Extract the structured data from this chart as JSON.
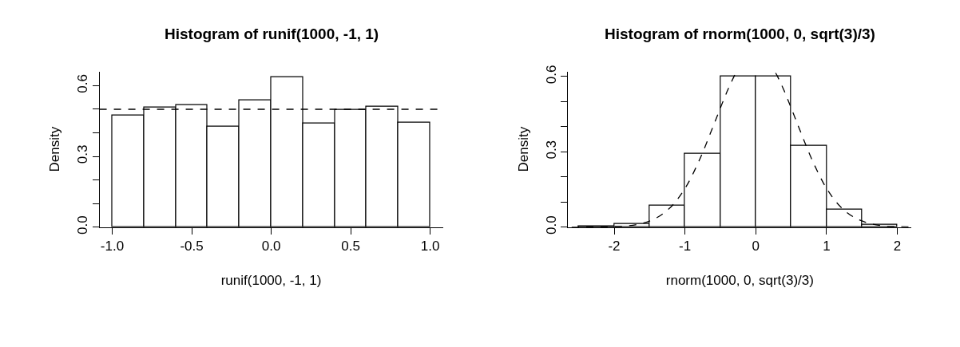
{
  "chart_data": [
    {
      "type": "histogram",
      "title": "Histogram of runif(1000, -1, 1)",
      "xlabel": "runif(1000, -1, 1)",
      "ylabel": "Density",
      "bins": [
        -1.0,
        -0.8,
        -0.6,
        -0.4,
        -0.2,
        0.0,
        0.2,
        0.4,
        0.6,
        0.8,
        1.0
      ],
      "values": [
        0.474,
        0.508,
        0.517,
        0.425,
        0.537,
        0.635,
        0.44,
        0.498,
        0.512,
        0.445
      ],
      "color": "#ffffff",
      "xlim": [
        -1.08,
        1.08
      ],
      "ylim": [
        0,
        0.66
      ],
      "xticks": [
        {
          "value": -1.0,
          "label": "-1.0"
        },
        {
          "value": -0.5,
          "label": "-0.5"
        },
        {
          "value": 0.0,
          "label": "0.0"
        },
        {
          "value": 0.5,
          "label": "0.5"
        },
        {
          "value": 1.0,
          "label": "1.0"
        }
      ],
      "yticks": [
        {
          "value": 0.0,
          "label": "0.0"
        },
        {
          "value": 0.1,
          "label": null
        },
        {
          "value": 0.2,
          "label": null
        },
        {
          "value": 0.3,
          "label": "0.3"
        },
        {
          "value": 0.4,
          "label": null
        },
        {
          "value": 0.5,
          "label": null
        },
        {
          "value": 0.6,
          "label": "0.6"
        }
      ],
      "ref_lines": [
        {
          "axis": "y",
          "value": 0.5,
          "color": "#000000",
          "line_style": "dashed"
        }
      ],
      "grid": false
    },
    {
      "type": "histogram",
      "title": "Histogram of rnorm(1000, 0, sqrt(3)/3)",
      "xlabel": "rnorm(1000, 0, sqrt(3)/3)",
      "ylabel": "Density",
      "bins": [
        -2.5,
        -2.0,
        -1.5,
        -1.0,
        -0.5,
        0.0,
        0.5,
        1.0,
        1.5,
        2.0
      ],
      "values": [
        0.002,
        0.012,
        0.087,
        0.291,
        0.6,
        0.6,
        0.324,
        0.07,
        0.009
      ],
      "color": "#ffffff",
      "series": [
        {
          "type": "line",
          "color": "#000000",
          "line_style": "dashed",
          "x": [
            -2.6,
            -2.2,
            -2.0,
            -1.8,
            -1.6,
            -1.4,
            -1.2,
            -1.0,
            -0.8,
            -0.6,
            -0.4,
            -0.3,
            -0.28,
            0.0,
            0.28,
            0.3,
            0.4,
            0.6,
            0.8,
            1.0,
            1.2,
            1.4,
            1.6,
            1.8,
            2.0,
            2.2
          ],
          "values": [
            0.0,
            0.001,
            0.002,
            0.005,
            0.015,
            0.037,
            0.08,
            0.154,
            0.265,
            0.403,
            0.544,
            0.604,
            0.614,
            null,
            0.614,
            0.604,
            0.544,
            0.403,
            0.265,
            0.154,
            0.08,
            0.037,
            0.015,
            0.005,
            0.002,
            0.001
          ]
        }
      ],
      "xlim": [
        -2.65,
        2.2
      ],
      "ylim": [
        0,
        0.62
      ],
      "xticks": [
        -2,
        -1,
        0,
        1,
        2
      ],
      "yticks": [
        {
          "value": 0.0,
          "label": "0.0"
        },
        {
          "value": 0.1,
          "label": null
        },
        {
          "value": 0.2,
          "label": null
        },
        {
          "value": 0.3,
          "label": "0.3"
        },
        {
          "value": 0.4,
          "label": null
        },
        {
          "value": 0.5,
          "label": null
        },
        {
          "value": 0.6,
          "label": "0.6"
        }
      ],
      "grid": false
    }
  ]
}
